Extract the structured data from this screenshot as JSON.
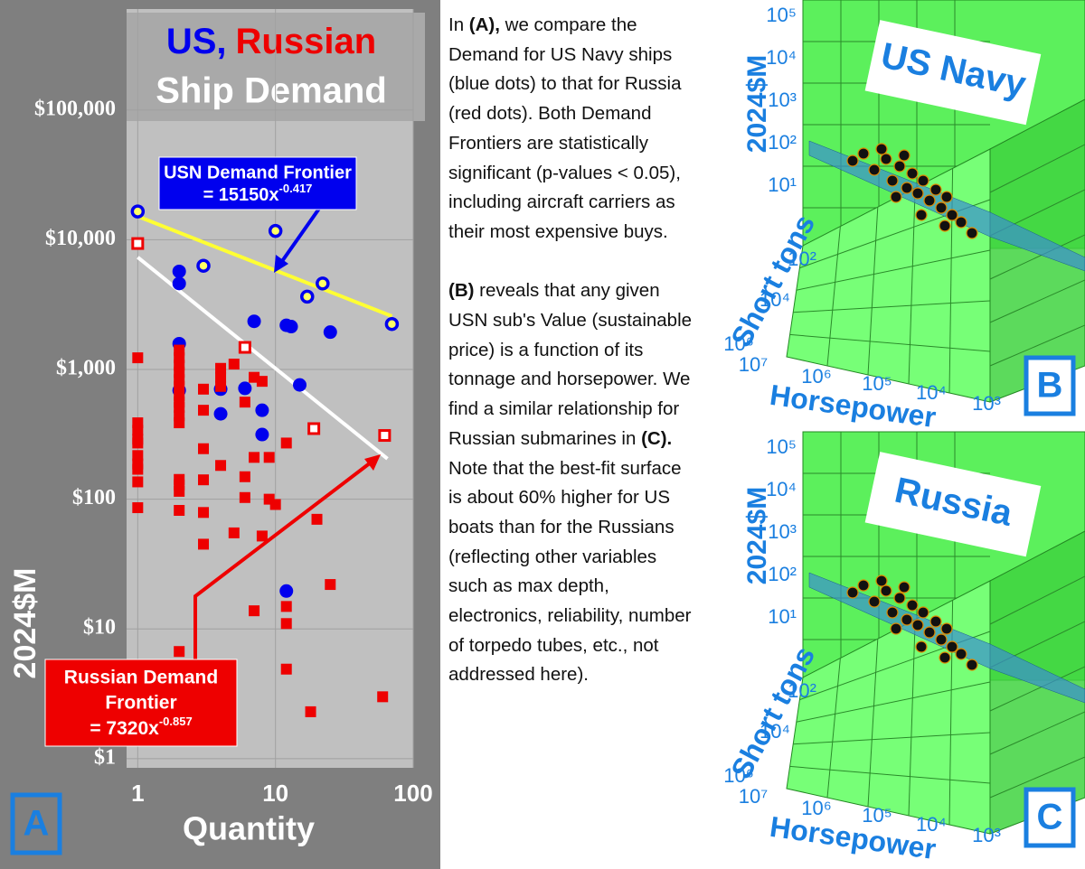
{
  "chart_data": {
    "type": "scatter",
    "title_parts": [
      {
        "text": "US,",
        "color": "#0000ee"
      },
      {
        "text": "Russian",
        "color": "#ee0000"
      },
      {
        "text": "Ship Demand",
        "color": "#ffffff"
      }
    ],
    "x_label": "Quantity",
    "y_label": "2024$M",
    "panel_letter": "A",
    "log_x": true,
    "log_y": true,
    "grid": true,
    "xlim": [
      0.83,
      100
    ],
    "ylim": [
      0.85,
      600000
    ],
    "xticks": [
      1,
      10,
      100
    ],
    "yticks": [
      {
        "value": 1,
        "label": "$1"
      },
      {
        "value": 10,
        "label": "$10"
      },
      {
        "value": 100,
        "label": "$100"
      },
      {
        "value": 1000,
        "label": "$1,000"
      },
      {
        "value": 10000,
        "label": "$10,000"
      },
      {
        "value": 100000,
        "label": "$100,000"
      }
    ],
    "series": [
      {
        "color": "#0000ee",
        "marker": "circle",
        "x": [
          2,
          2,
          7,
          12,
          13,
          25,
          2,
          15,
          4,
          6,
          2,
          4,
          8,
          8,
          12
        ],
        "values": [
          5700,
          4600,
          2350,
          2190,
          2140,
          1940,
          1580,
          760,
          705,
          715,
          690,
          455,
          485,
          315,
          19.6
        ]
      },
      {
        "color": "#0000ee",
        "marker": "ring",
        "inner_color": "#ffff66",
        "x": [
          1,
          10,
          3,
          22,
          17,
          70
        ],
        "values": [
          16500,
          11700,
          6300,
          4600,
          3640,
          2240
        ]
      },
      {
        "color": "#ee0000",
        "marker": "square",
        "x": [
          1,
          1,
          1,
          1,
          1,
          1,
          1,
          1,
          1,
          1,
          2,
          2,
          2,
          2,
          2,
          2,
          2,
          2,
          2,
          2,
          2,
          2,
          2,
          2,
          2,
          2,
          3,
          3,
          3,
          3,
          3,
          3,
          4,
          4,
          4,
          4,
          5,
          5,
          6,
          6,
          6,
          7,
          7,
          7,
          8,
          8,
          9,
          9,
          10,
          12,
          12,
          12,
          12,
          18,
          20,
          25,
          60
        ],
        "values": [
          1230,
          388,
          340,
          290,
          271,
          217,
          187,
          170,
          136,
          86,
          1410,
          1230,
          1080,
          950,
          835,
          740,
          630,
          560,
          510,
          440,
          388,
          142,
          129,
          115,
          82,
          6.7,
          705,
          485,
          245,
          141,
          79,
          45,
          1020,
          870,
          740,
          182,
          1100,
          55,
          560,
          149,
          103,
          870,
          210,
          13.8,
          810,
          52,
          210,
          100,
          91,
          271,
          14.9,
          11,
          4.9,
          2.3,
          70,
          22,
          3
        ]
      },
      {
        "color": "#ee0000",
        "marker": "hollow-square",
        "inner_color": "#ffffff",
        "x": [
          1,
          6,
          19,
          62
        ],
        "values": [
          9350,
          1480,
          350,
          310
        ]
      }
    ],
    "fit_lines": [
      {
        "color": "#ffff33",
        "x": [
          1,
          70
        ],
        "values": [
          15150,
          2576
        ]
      },
      {
        "color": "#ffffff",
        "x": [
          1,
          65
        ],
        "values": [
          7320,
          205
        ]
      }
    ],
    "annotations": [
      {
        "color": "#0000ee",
        "lines": [
          "USN Demand Frontier"
        ],
        "formula": "= 15150x",
        "exponent": "-0.417"
      },
      {
        "color": "#ee0000",
        "lines": [
          "Russian  Demand",
          "Frontier"
        ],
        "formula": "= 7320x",
        "exponent": "-0.857"
      }
    ]
  },
  "text": {
    "paragraphs": [
      [
        {
          "text": "In "
        },
        {
          "text": "(A),",
          "bold": true
        },
        {
          "text": " we compare the Demand for US Navy ships (blue dots) to that for Russia (red dots). Both Demand Frontiers are statistically significant (p-values < 0.05), including aircraft carriers as their most expensive buys."
        }
      ],
      [
        {
          "text": "(B)",
          "bold": true
        },
        {
          "text": " reveals that any given USN sub's Value (sustainable price) is a function of its tonnage and horsepower. We find a similar relationship for Russian submarines in "
        },
        {
          "text": "(C).",
          "bold": true
        },
        {
          "text": " Note that the best-fit surface is about 60% higher for US boats than for the Russians (reflecting other variables such as max depth, electronics, reliability, number of torpedo tubes, etc., not addressed here)."
        }
      ]
    ]
  },
  "panels": [
    {
      "title": "US Navy",
      "letter": "B",
      "z_label": "2024$M",
      "z_ticks": [
        "10⁵",
        "10⁴",
        "10³",
        "10²",
        "10¹"
      ],
      "y_label": "Short tons",
      "y_ticks": [
        "10²",
        "10⁴",
        "10⁶"
      ],
      "x_label": "Horsepower",
      "x_ticks": [
        "10⁷",
        "10⁶",
        "10⁵",
        "10⁴",
        "10³"
      ]
    },
    {
      "title": "Russia",
      "letter": "C",
      "z_label": "2024$M",
      "z_ticks": [
        "10⁵",
        "10⁴",
        "10³",
        "10²",
        "10¹"
      ],
      "y_label": "Short tons",
      "y_ticks": [
        "10²",
        "10⁴",
        "10⁶"
      ],
      "x_label": "Horsepower",
      "x_ticks": [
        "10⁷",
        "10⁶",
        "10⁵",
        "10⁴",
        "10³"
      ]
    }
  ]
}
